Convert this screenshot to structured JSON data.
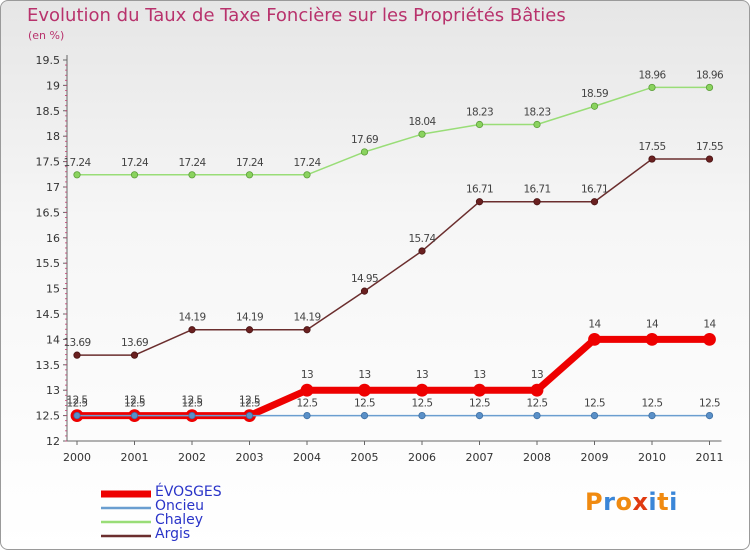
{
  "colors": {
    "title": "#b8326c",
    "evosges": "#ee0000",
    "oncieu": "#6a9ed0",
    "chaley": "#99dd77",
    "argis": "#6b2e2e",
    "logo": [
      "#f08a10",
      "#3a86d8",
      "#f08a10",
      "#e03a10",
      "#3a86d8",
      "#f08a10"
    ]
  },
  "logo": {
    "letters": [
      "P",
      "r",
      "o",
      "x",
      "i",
      "t",
      "i"
    ]
  },
  "chart_data": {
    "type": "line",
    "title": "Evolution du Taux de Taxe Foncière sur les Propriétés Bâties",
    "subtitle": "(en %)",
    "xlabel": "",
    "ylabel": "(en %)",
    "ylim": [
      12,
      19.5
    ],
    "yticks": [
      12,
      12.5,
      13,
      13.5,
      14,
      14.5,
      15,
      15.5,
      16,
      16.5,
      17,
      17.5,
      18,
      18.5,
      19,
      19.5
    ],
    "grid": false,
    "legend_position": "bottom-left",
    "categories": [
      "2000",
      "2001",
      "2002",
      "2003",
      "2004",
      "2005",
      "2006",
      "2007",
      "2008",
      "2009",
      "2010",
      "2011"
    ],
    "series": [
      {
        "name": "ÉVOSGES",
        "values": [
          12.5,
          12.5,
          12.5,
          12.5,
          13,
          13,
          13,
          13,
          13,
          14,
          14,
          14
        ],
        "labels": [
          "12.5",
          "12.5",
          "12.5",
          "12.5",
          "13",
          "13",
          "13",
          "13",
          "13",
          "14",
          "14",
          "14"
        ]
      },
      {
        "name": "Oncieu",
        "values": [
          12.5,
          12.5,
          12.5,
          12.5,
          12.5,
          12.5,
          12.5,
          12.5,
          12.5,
          12.5,
          12.5,
          12.5
        ],
        "labels": [
          "12.5",
          "12.5",
          "12.5",
          "12.5",
          "12.5",
          "12.5",
          "12.5",
          "12.5",
          "12.5",
          "12.5",
          "12.5",
          "12.5"
        ]
      },
      {
        "name": "Chaley",
        "values": [
          17.24,
          17.24,
          17.24,
          17.24,
          17.24,
          17.69,
          18.04,
          18.23,
          18.23,
          18.59,
          18.96,
          18.96
        ],
        "labels": [
          "17.24",
          "17.24",
          "17.24",
          "17.24",
          "17.24",
          "17.69",
          "18.04",
          "18.23",
          "18.23",
          "18.59",
          "18.96",
          "18.96"
        ]
      },
      {
        "name": "Argis",
        "values": [
          13.69,
          13.69,
          14.19,
          14.19,
          14.19,
          14.95,
          15.74,
          16.71,
          16.71,
          16.71,
          17.55,
          17.55
        ],
        "labels": [
          "13.69",
          "13.69",
          "14.19",
          "14.19",
          "14.19",
          "14.95",
          "15.74",
          "16.71",
          "16.71",
          "16.71",
          "17.55",
          "17.55"
        ]
      }
    ]
  }
}
